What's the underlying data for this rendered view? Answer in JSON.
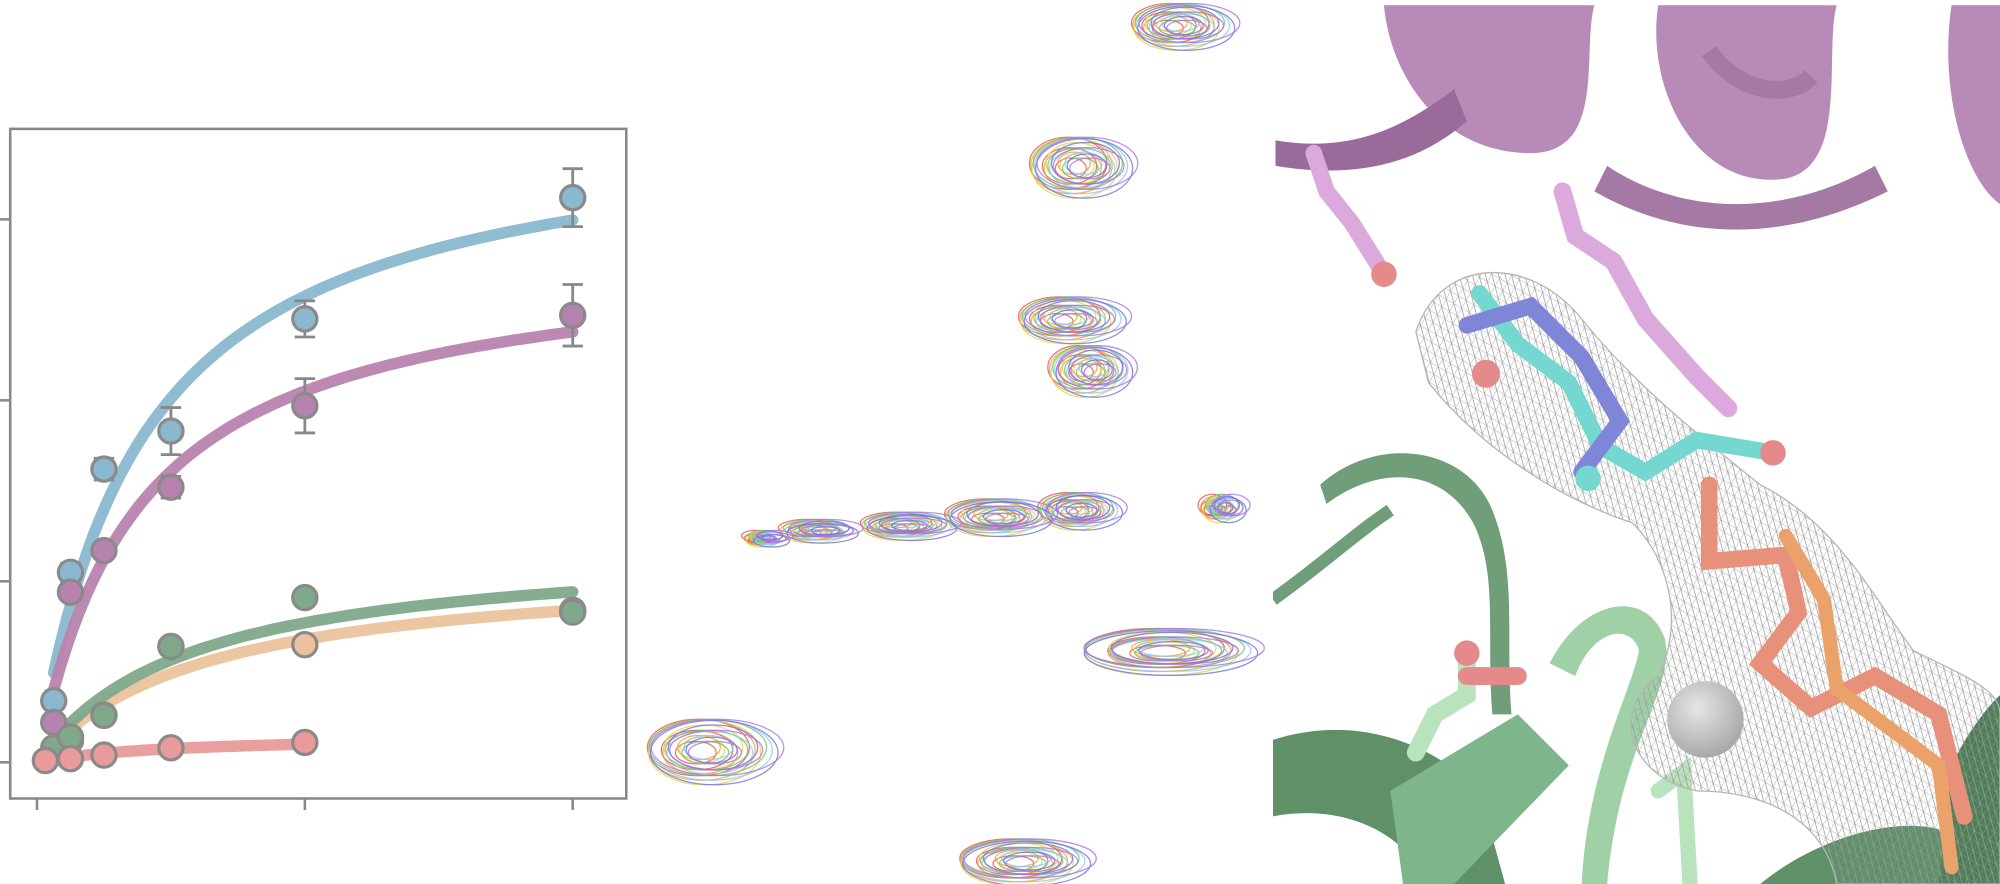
{
  "chart_data": {
    "type": "scatter",
    "xlim": [
      -0.1,
      2.2
    ],
    "ylim": [
      -0.2,
      3.5
    ],
    "xticks": [
      0,
      1,
      2
    ],
    "yticks": [
      0,
      1,
      2,
      3
    ],
    "series": [
      {
        "color": "#8ab8cf",
        "x": [
          0.0625,
          0.125,
          0.25,
          0.5,
          1,
          2
        ],
        "values": [
          0.34,
          1.05,
          1.62,
          1.83,
          2.45,
          3.12
        ],
        "errors": [
          0,
          0.05,
          0.06,
          0.13,
          0.1,
          0.16
        ],
        "fit_vmax": 3.58,
        "fit_km": 0.39
      },
      {
        "color": "#b783ae",
        "x": [
          0.0625,
          0.125,
          0.25,
          0.5,
          1,
          2
        ],
        "values": [
          0.22,
          0.94,
          1.17,
          1.52,
          1.97,
          2.47
        ],
        "errors": [
          0,
          0,
          0,
          0.06,
          0.15,
          0.17
        ],
        "fit_vmax": 2.83,
        "fit_km": 0.38
      },
      {
        "color": "#ebc29c",
        "x": [
          0.0625,
          0.125,
          0.25,
          0.5,
          1,
          2
        ],
        "values": [
          0.05,
          0.12,
          0.26,
          0.64,
          0.65,
          0.84
        ],
        "errors": [
          0,
          0,
          0,
          0,
          0,
          0
        ],
        "fit_vmax": 1.1,
        "fit_km": 0.62
      },
      {
        "color": "#7fa98a",
        "x": [
          0.0625,
          0.125,
          0.25,
          0.5,
          1,
          2
        ],
        "values": [
          0.08,
          0.14,
          0.26,
          0.64,
          0.91,
          0.83
        ],
        "errors": [
          0,
          0,
          0,
          0,
          0,
          0
        ],
        "fit_vmax": 1.21,
        "fit_km": 0.57
      },
      {
        "color": "#e99a9a",
        "x": [
          0.03125,
          0.125,
          0.25,
          0.5,
          1
        ],
        "values": [
          0.01,
          0.02,
          0.04,
          0.08,
          0.11
        ],
        "errors": [
          0,
          0,
          0,
          0,
          0
        ],
        "fit_vmax": 0.15,
        "fit_km": 0.5
      }
    ]
  }
}
